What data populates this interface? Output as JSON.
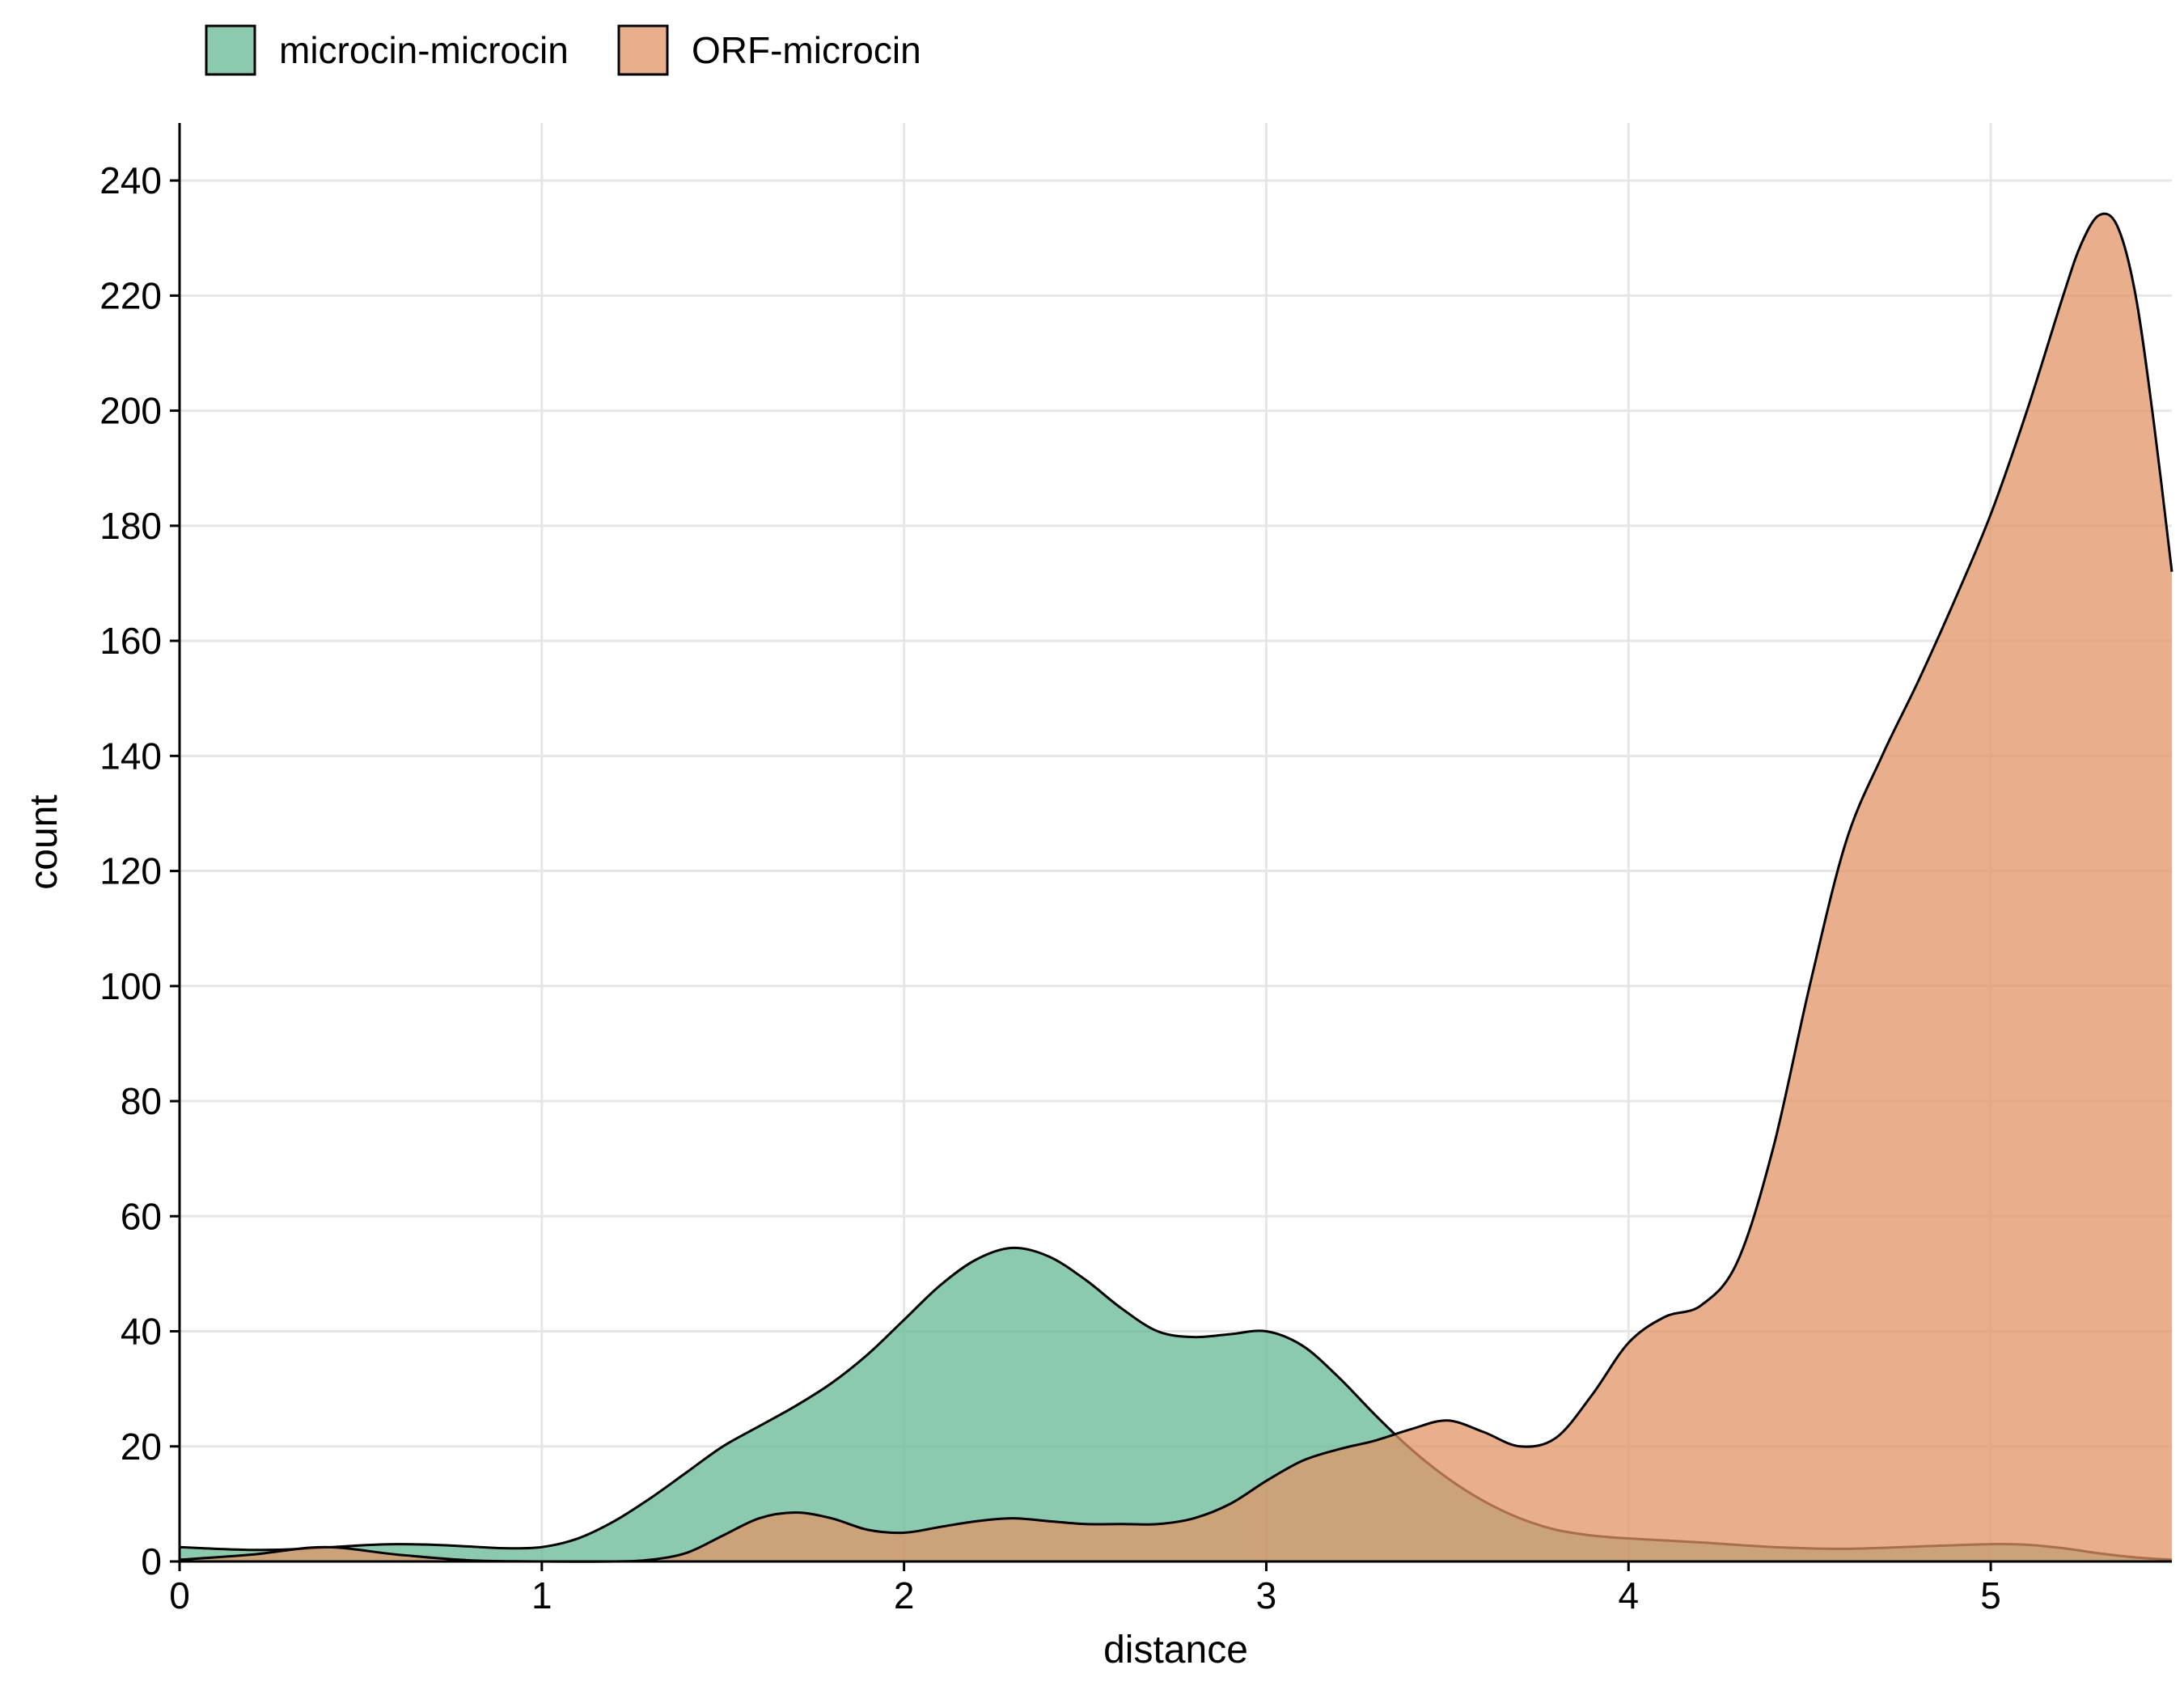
{
  "chart_data": {
    "type": "area",
    "subtype": "density",
    "xlabel": "distance",
    "ylabel": "count",
    "xlim": [
      0,
      5.5
    ],
    "ylim": [
      0,
      250
    ],
    "xticks": [
      0,
      1,
      2,
      3,
      4,
      5
    ],
    "yticks": [
      0,
      20,
      40,
      60,
      80,
      100,
      120,
      140,
      160,
      180,
      200,
      220,
      240
    ],
    "grid": true,
    "legend_position": "top-left",
    "series": [
      {
        "name": "microcin-microcin",
        "color": "#66b894",
        "x": [
          0,
          0.1,
          0.2,
          0.3,
          0.4,
          0.5,
          0.6,
          0.7,
          0.8,
          0.9,
          1.0,
          1.1,
          1.2,
          1.3,
          1.4,
          1.5,
          1.6,
          1.7,
          1.8,
          1.9,
          2.0,
          2.1,
          2.2,
          2.3,
          2.4,
          2.5,
          2.6,
          2.7,
          2.8,
          2.9,
          3.0,
          3.1,
          3.2,
          3.3,
          3.4,
          3.5,
          3.6,
          3.7,
          3.8,
          3.9,
          4.0,
          4.2,
          4.4,
          4.6,
          4.8,
          5.0,
          5.1,
          5.2,
          5.3,
          5.4,
          5.5
        ],
        "y": [
          2.5,
          2.2,
          2.0,
          2.1,
          2.4,
          2.8,
          3.0,
          2.9,
          2.6,
          2.3,
          2.5,
          4.0,
          7.0,
          11.0,
          15.5,
          20.0,
          23.5,
          27.0,
          31.0,
          36.0,
          42.0,
          48.0,
          52.5,
          54.5,
          53.0,
          49.0,
          44.0,
          40.0,
          39.0,
          39.5,
          40.0,
          37.5,
          32.0,
          25.5,
          19.5,
          14.5,
          10.5,
          7.5,
          5.5,
          4.5,
          4.0,
          3.3,
          2.5,
          2.2,
          2.6,
          3.0,
          2.9,
          2.3,
          1.4,
          0.7,
          0.3
        ]
      },
      {
        "name": "ORF-microcin",
        "color": "#e19466",
        "x": [
          0,
          0.2,
          0.4,
          0.6,
          0.8,
          1.0,
          1.2,
          1.3,
          1.4,
          1.5,
          1.6,
          1.7,
          1.8,
          1.9,
          2.0,
          2.1,
          2.2,
          2.3,
          2.4,
          2.5,
          2.6,
          2.7,
          2.8,
          2.9,
          3.0,
          3.1,
          3.2,
          3.3,
          3.4,
          3.5,
          3.6,
          3.7,
          3.8,
          3.9,
          4.0,
          4.1,
          4.2,
          4.3,
          4.4,
          4.5,
          4.6,
          4.7,
          4.8,
          4.9,
          5.0,
          5.1,
          5.2,
          5.25,
          5.3,
          5.35,
          5.4,
          5.45,
          5.5
        ],
        "y": [
          0.3,
          1.2,
          2.5,
          1.2,
          0.2,
          0.0,
          0.0,
          0.3,
          1.5,
          4.5,
          7.5,
          8.5,
          7.5,
          5.5,
          5.0,
          6.0,
          7.0,
          7.5,
          7.0,
          6.5,
          6.5,
          6.5,
          7.5,
          10.0,
          14.0,
          17.5,
          19.5,
          21.0,
          23.0,
          24.5,
          22.5,
          20.0,
          21.5,
          29.0,
          38.0,
          42.5,
          44.5,
          52.0,
          72.0,
          100.0,
          125.0,
          140.0,
          153.0,
          167.0,
          182.0,
          200.0,
          220.0,
          229.0,
          234.0,
          232.0,
          220.0,
          198.0,
          172.0
        ]
      }
    ]
  }
}
